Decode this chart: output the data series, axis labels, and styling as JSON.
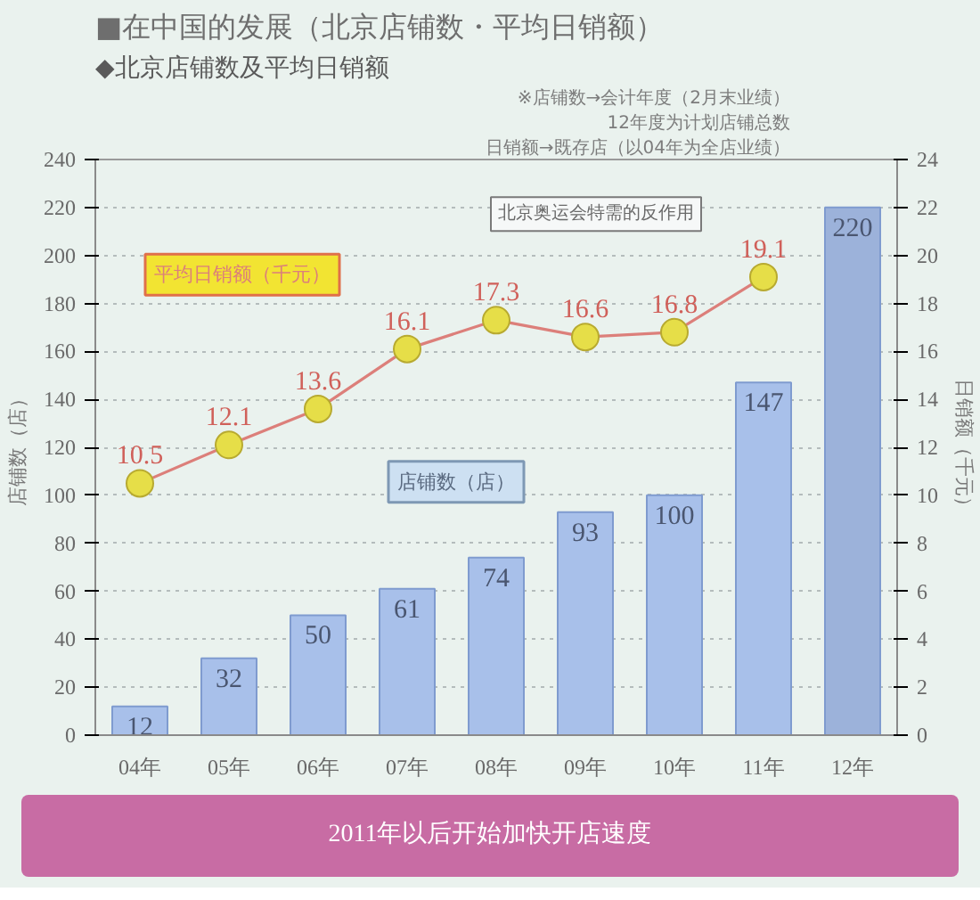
{
  "chart_data": {
    "type": "bar",
    "title": "■在中国的发展（北京店铺数・平均日销额）",
    "subtitle": "◆北京店铺数及平均日销额",
    "ylabel": "店铺数（店）",
    "y2label": "日销额（千元）",
    "categories": [
      "04年",
      "05年",
      "06年",
      "07年",
      "08年",
      "09年",
      "10年",
      "11年",
      "12年"
    ],
    "series": [
      {
        "name": "店铺数（店）",
        "colors": [
          "#a8c0ea",
          "#a8c0ea",
          "#a8c0ea",
          "#a8c0ea",
          "#a8c0ea",
          "#a8c0ea",
          "#a8c0ea",
          "#a8c0ea",
          "#9cb2da"
        ],
        "values": [
          12,
          32,
          50,
          61,
          74,
          93,
          100,
          147,
          220
        ]
      },
      {
        "name": "平均日销额（千元）",
        "type": "line",
        "axis": "y2",
        "color": "#dc7f7a",
        "colors": [
          "#e6de48",
          "#e6de48",
          "#e6de48",
          "#e6de48",
          "#e6de48",
          "#e6de48",
          "#e6de48",
          "#e6de48",
          "#e6de48"
        ],
        "values": [
          10.5,
          12.1,
          13.6,
          16.1,
          17.3,
          16.6,
          16.8,
          19.1,
          null
        ]
      }
    ],
    "ylim": [
      0,
      240
    ],
    "yticks": [
      0,
      20,
      40,
      60,
      80,
      100,
      120,
      140,
      160,
      180,
      200,
      220,
      240
    ],
    "y2lim": [
      0,
      24
    ],
    "y2ticks": [
      0,
      2,
      4,
      6,
      8,
      10,
      12,
      14,
      16,
      18,
      20,
      22,
      24
    ],
    "grid": "y",
    "data_labels": true,
    "marker": "circle",
    "line_style": "solid",
    "annotations": [
      "※店铺数→会计年度（2月末业绩）",
      "12年度为计划店铺总数",
      "日销额→既存店（以04年为全店业绩）",
      "北京奥运会特需的反作用",
      "2011年以后开始加快开店速度"
    ]
  }
}
